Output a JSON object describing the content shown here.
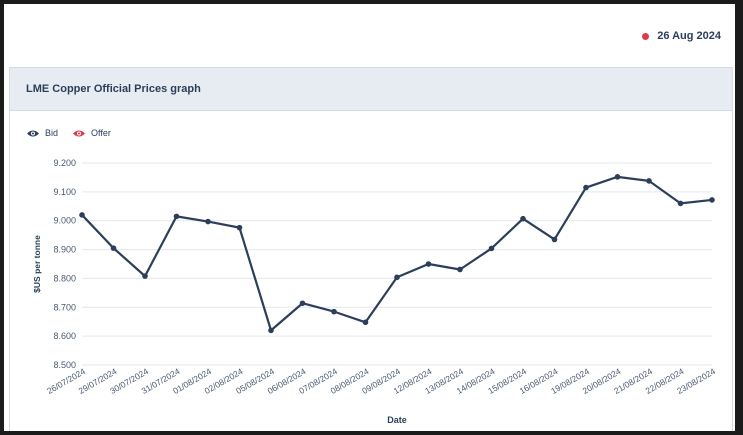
{
  "header": {
    "date": "26 Aug 2024"
  },
  "card": {
    "title": "LME Copper Official Prices graph"
  },
  "legend": {
    "bid_label": "Bid",
    "offer_label": "Offer"
  },
  "colors": {
    "bid": "#2c3e5a",
    "offer": "#e0384a",
    "grid": "#e3e7ec",
    "axis_text": "#4a5a70"
  },
  "chart_data": {
    "type": "line",
    "xlabel": "Date",
    "ylabel": "$US per tonne",
    "ylim": [
      8500,
      9200
    ],
    "yticks": [
      8500,
      8600,
      8700,
      8800,
      8900,
      9000,
      9100,
      9200
    ],
    "ytick_labels": [
      "8.500",
      "8.600",
      "8.700",
      "8.800",
      "8.900",
      "9.000",
      "9.100",
      "9.200"
    ],
    "categories": [
      "26/07/2024",
      "29/07/2024",
      "30/07/2024",
      "31/07/2024",
      "01/08/2024",
      "02/08/2024",
      "05/08/2024",
      "06/08/2024",
      "07/08/2024",
      "08/08/2024",
      "09/08/2024",
      "12/08/2024",
      "13/08/2024",
      "14/08/2024",
      "15/08/2024",
      "16/08/2024",
      "19/08/2024",
      "20/08/2024",
      "21/08/2024",
      "22/08/2024",
      "23/08/2024"
    ],
    "series": [
      {
        "name": "Bid",
        "values": [
          9020,
          8905,
          8808,
          9015,
          8997,
          8976,
          8620,
          8714,
          8685,
          8648,
          8804,
          8850,
          8831,
          8904,
          9007,
          8935,
          9115,
          9152,
          9138,
          9060,
          9072
        ]
      }
    ],
    "grid": true,
    "legend_position": "top-left"
  }
}
